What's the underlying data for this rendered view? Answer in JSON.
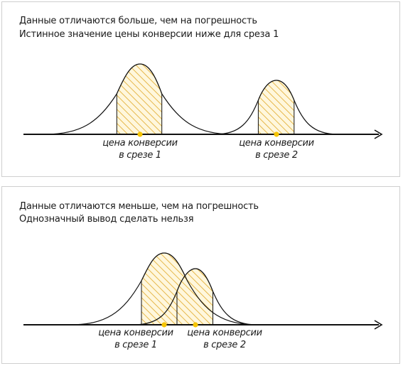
{
  "colors": {
    "curve": "#111111",
    "hatch": "#e6b84c",
    "hatch_bg": "#fff7dd",
    "dot": "#f5c400",
    "axis": "#111111",
    "border": "#cfcfcf"
  },
  "panel1": {
    "title_line1": "Данные отличаются больше, чем на погрешность",
    "title_line2": "Истинное значение цены конверсии ниже для среза 1",
    "label1_line1": "цена конверсии",
    "label1_line2": "в срезе 1",
    "label2_line1": "цена конверсии",
    "label2_line2": "в срезе 2"
  },
  "panel2": {
    "title_line1": "Данные отличаются меньше, чем на погрешность",
    "title_line2": "Однозначный вывод сделать нельзя",
    "label1_line1": "цена конверсии",
    "label1_line2": "в срезе 1",
    "label2_line1": "цена конверсии",
    "label2_line2": "в срезе 2"
  }
}
